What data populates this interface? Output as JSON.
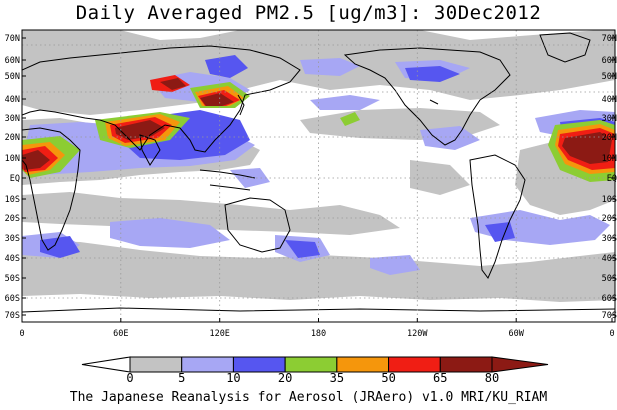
{
  "figure": {
    "title": "Daily Averaged PM2.5 [ug/m3]: 30Dec2012",
    "footer": "The Japanese Reanalysis for Aerosol (JRAero) v1.0 MRI/KU_RIAM"
  },
  "map": {
    "lat_labels": [
      "70N",
      "60N",
      "50N",
      "40N",
      "30N",
      "20N",
      "10N",
      "EQ",
      "10S",
      "20S",
      "30S",
      "40S",
      "50S",
      "60S",
      "70S"
    ],
    "lon_labels": [
      "0",
      "60E",
      "120E",
      "180",
      "120W",
      "60W",
      "0"
    ]
  },
  "colorbar": {
    "levels": [
      "0",
      "5",
      "10",
      "20",
      "35",
      "50",
      "65",
      "80"
    ],
    "colors": [
      "#ffffff",
      "#c3c3c3",
      "#a7a7f4",
      "#5656f0",
      "#8ccd33",
      "#f5960c",
      "#f01e14",
      "#8c1a14"
    ]
  },
  "colors": {
    "land_outline": "#000000",
    "ocean": "#ffffff",
    "grid": "#999999"
  }
}
